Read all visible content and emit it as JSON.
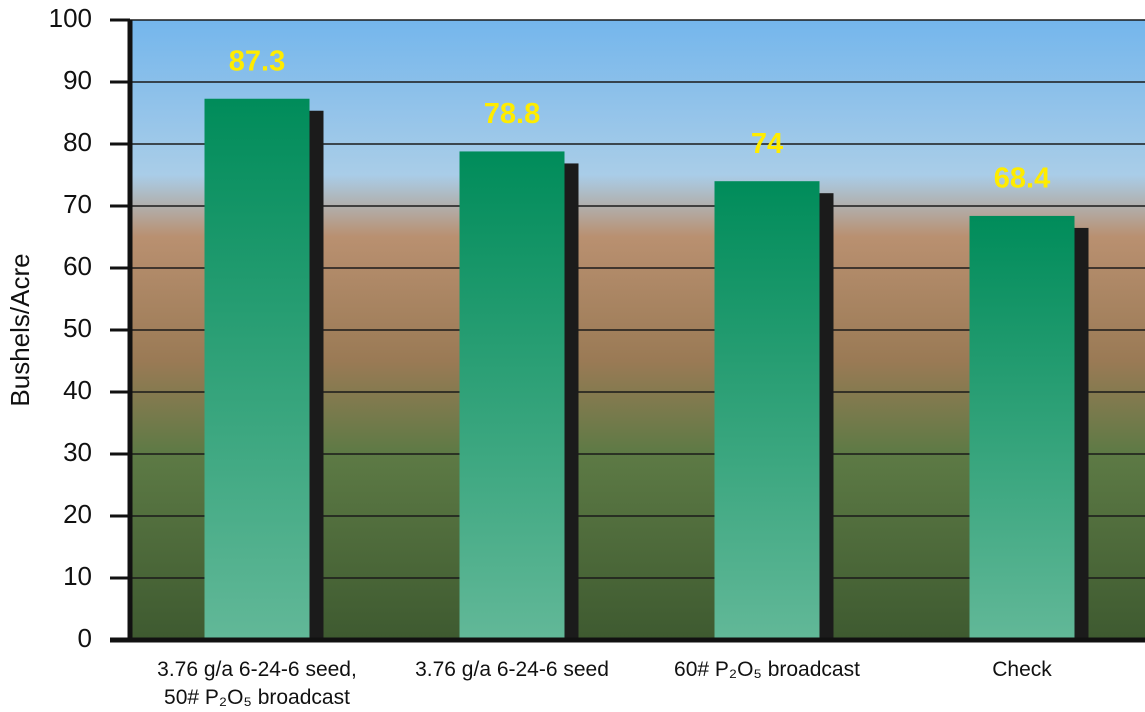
{
  "chart_data": {
    "type": "bar",
    "y_label": "Bushels/Acre",
    "categories": [
      "3.76 g/a 6-24-6 seed,\n50# P₂O₅ broadcast",
      "3.76 g/a 6-24-6 seed",
      "60# P₂O₅ broadcast",
      "Check"
    ],
    "values": [
      87.3,
      78.8,
      74,
      68.4
    ],
    "color": "#008c5a",
    "label_color": "#ffec00",
    "ylim": [
      0,
      100
    ],
    "yticks": [
      0,
      10,
      20,
      30,
      40,
      50,
      60,
      70,
      80,
      90,
      100
    ],
    "grid": true
  }
}
